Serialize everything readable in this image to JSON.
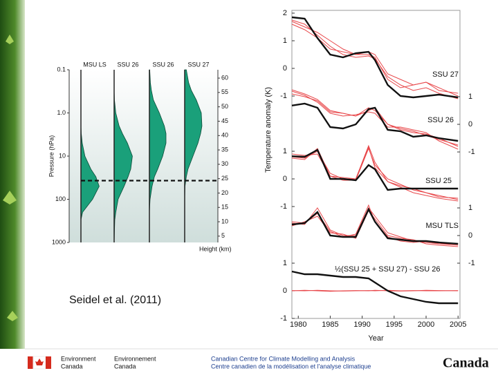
{
  "slide": {
    "citation": "Seidel et al. (2011)"
  },
  "footer": {
    "org_en": [
      "Environment",
      "Canada"
    ],
    "org_fr": [
      "Environnement",
      "Canada"
    ],
    "centre_en": "Canadian Centre for Climate Modelling and Analysis",
    "centre_fr": "Centre canadien de la modélisation et l'analyse climatique",
    "wordmark": "Canada"
  },
  "chart_data": [
    {
      "type": "area",
      "columns": [
        "MSU LS",
        "SSU 26",
        "SSU 26",
        "SSU 27"
      ],
      "ylabel": "Pressure (hPa)",
      "y2label": "Height (km)",
      "log_y": true,
      "ylim": [
        1000,
        0.1
      ],
      "yticks": [
        0.1,
        {
          "value": 1,
          "label": "1.0"
        },
        10,
        100,
        1000
      ],
      "y2lim": [
        2.8,
        62.9
      ],
      "y2ticks": [
        5,
        10,
        15,
        20,
        25,
        30,
        35,
        40,
        45,
        50,
        55,
        60
      ],
      "xlim": [
        0,
        1
      ],
      "dashed_line": 37,
      "color": "#1aa07a",
      "y": [
        1000,
        300,
        200,
        100,
        50,
        30,
        20,
        10,
        5,
        3,
        2,
        1,
        0.5,
        0.3,
        0.2,
        0.1
      ],
      "series": [
        {
          "values": [
            0,
            0,
            0.05,
            0.35,
            0.55,
            0.45,
            0.3,
            0.12,
            0.04,
            0.01,
            0,
            0,
            0,
            0,
            0,
            0
          ]
        },
        {
          "values": [
            0,
            0.02,
            0.05,
            0.12,
            0.3,
            0.42,
            0.5,
            0.55,
            0.4,
            0.25,
            0.15,
            0.05,
            0.01,
            0,
            0,
            0
          ]
        },
        {
          "values": [
            0,
            0,
            0,
            0.02,
            0.08,
            0.15,
            0.25,
            0.4,
            0.5,
            0.5,
            0.45,
            0.3,
            0.12,
            0.06,
            0.03,
            0.01
          ]
        },
        {
          "values": [
            0,
            0,
            0,
            0,
            0.01,
            0.05,
            0.1,
            0.25,
            0.4,
            0.48,
            0.52,
            0.5,
            0.35,
            0.2,
            0.12,
            0.05
          ]
        }
      ]
    },
    {
      "type": "line",
      "ylabel": "Temperature anomaly (K)",
      "xlabel": "Year",
      "x": [
        1979,
        1981,
        1983,
        1985,
        1987,
        1989,
        1991,
        1992,
        1994,
        1996,
        1998,
        2000,
        2002,
        2005
      ],
      "xlim": [
        1979,
        2005.3
      ],
      "xticks": [
        1980,
        1985,
        1990,
        1995,
        2000,
        2005
      ],
      "panels": [
        {
          "label": "SSU 27",
          "axis_side": "left",
          "ylim": [
            -1.3,
            2.1
          ],
          "yticks": [
            -1,
            0,
            1,
            2
          ],
          "series": [
            {
              "color": "#e8474a",
              "values": [
                1.75,
                1.6,
                1.2,
                0.8,
                0.5,
                0.4,
                0.45,
                0.35,
                -0.3,
                -0.6,
                -0.8,
                -0.7,
                -0.9,
                -1.1
              ]
            },
            {
              "color": "#e8474a",
              "values": [
                1.6,
                1.4,
                1.1,
                0.7,
                0.6,
                0.5,
                0.6,
                0.5,
                -0.2,
                -0.4,
                -0.6,
                -0.5,
                -0.7,
                -1.0
              ]
            },
            {
              "color": "#e8474a",
              "values": [
                1.7,
                1.5,
                1.3,
                1.0,
                0.7,
                0.5,
                0.5,
                0.4,
                -0.4,
                -0.7,
                -0.6,
                -0.5,
                -0.8,
                -0.9
              ]
            },
            {
              "color": "#111111",
              "values": [
                1.85,
                1.8,
                1.1,
                0.5,
                0.4,
                0.55,
                0.6,
                0.3,
                -0.6,
                -1.0,
                -1.05,
                -1.0,
                -0.95,
                -1.05
              ]
            }
          ]
        },
        {
          "label": "SSU 26",
          "axis_side": "right",
          "ylim": [
            -1.1,
            1.3
          ],
          "yticks": [
            -1,
            0,
            1
          ],
          "series": [
            {
              "color": "#e8474a",
              "values": [
                1.25,
                1.1,
                0.9,
                0.5,
                0.4,
                0.3,
                0.5,
                0.6,
                0.0,
                -0.2,
                -0.3,
                -0.35,
                -0.5,
                -0.8
              ]
            },
            {
              "color": "#e8474a",
              "values": [
                1.2,
                1.05,
                0.8,
                0.4,
                0.3,
                0.35,
                0.45,
                0.4,
                -0.1,
                -0.1,
                -0.2,
                -0.3,
                -0.6,
                -0.9
              ]
            },
            {
              "color": "#e8474a",
              "values": [
                1.1,
                1.0,
                0.85,
                0.45,
                0.4,
                0.3,
                0.6,
                0.5,
                0.0,
                -0.15,
                -0.25,
                -0.4,
                -0.55,
                -0.75
              ]
            },
            {
              "color": "#111111",
              "values": [
                0.68,
                0.75,
                0.6,
                -0.1,
                -0.15,
                0.0,
                0.55,
                0.6,
                -0.2,
                -0.25,
                -0.45,
                -0.4,
                -0.5,
                -0.6
              ]
            }
          ]
        },
        {
          "label": "SSU 25",
          "axis_side": "left",
          "ylim": [
            -1.1,
            1.3
          ],
          "yticks": [
            -1,
            0,
            1
          ],
          "series": [
            {
              "color": "#e8474a",
              "values": [
                0.8,
                0.75,
                1.0,
                0.2,
                0.0,
                0.0,
                1.2,
                0.6,
                -0.1,
                -0.3,
                -0.5,
                -0.6,
                -0.7,
                -0.8
              ]
            },
            {
              "color": "#e8474a",
              "values": [
                0.9,
                0.85,
                0.9,
                0.1,
                -0.05,
                -0.05,
                1.1,
                0.5,
                0.0,
                -0.2,
                -0.4,
                -0.5,
                -0.6,
                -0.75
              ]
            },
            {
              "color": "#e8474a",
              "values": [
                0.75,
                0.7,
                1.1,
                0.1,
                0.05,
                0.0,
                1.15,
                0.4,
                -0.1,
                -0.25,
                -0.35,
                -0.5,
                -0.65,
                -0.7
              ]
            },
            {
              "color": "#111111",
              "values": [
                0.82,
                0.8,
                1.05,
                0.0,
                0.0,
                -0.05,
                0.5,
                0.35,
                -0.4,
                -0.35,
                -0.35,
                -0.35,
                -0.35,
                -0.35
              ]
            }
          ]
        },
        {
          "label": "MSU TLS",
          "axis_side": "right",
          "ylim": [
            -0.8,
            1.2
          ],
          "yticks": [
            -1,
            0,
            1
          ],
          "series": [
            {
              "color": "#e8474a",
              "values": [
                0.45,
                0.4,
                1.0,
                0.2,
                0.0,
                0.0,
                1.0,
                0.7,
                0.1,
                -0.05,
                -0.2,
                -0.25,
                -0.3,
                -0.35
              ]
            },
            {
              "color": "#e8474a",
              "values": [
                0.35,
                0.5,
                0.7,
                0.1,
                0.05,
                -0.1,
                0.9,
                0.6,
                0.0,
                -0.1,
                -0.15,
                -0.3,
                -0.35,
                -0.4
              ]
            },
            {
              "color": "#e8474a",
              "values": [
                0.5,
                0.45,
                0.8,
                0.15,
                -0.05,
                0.05,
                1.1,
                0.5,
                -0.05,
                -0.2,
                -0.25,
                -0.2,
                -0.3,
                -0.3
              ]
            },
            {
              "color": "#111111",
              "values": [
                0.4,
                0.45,
                0.85,
                0.0,
                -0.05,
                -0.05,
                0.95,
                0.5,
                -0.1,
                -0.15,
                -0.2,
                -0.2,
                -0.25,
                -0.3
              ]
            }
          ]
        },
        {
          "label": "½(SSU 25 + SSU 27) - SSU 26",
          "axis_side": "left",
          "ylim": [
            -1,
            1
          ],
          "yticks": [
            -1,
            0,
            1
          ],
          "series": [
            {
              "color": "#e8474a",
              "values": [
                0.0,
                0.02,
                0.0,
                -0.02,
                0.0,
                0.01,
                0.0,
                0.02,
                0.0,
                -0.01,
                0.0,
                0.02,
                0.01,
                0.0
              ]
            },
            {
              "color": "#e8474a",
              "values": [
                0.01,
                0.0,
                0.02,
                0.0,
                -0.01,
                0.0,
                0.01,
                0.0,
                0.02,
                0.0,
                0.01,
                0.0,
                0.0,
                0.01
              ]
            },
            {
              "color": "#111111",
              "values": [
                0.7,
                0.6,
                0.6,
                0.55,
                0.5,
                0.5,
                0.45,
                0.3,
                0.0,
                -0.2,
                -0.3,
                -0.4,
                -0.45,
                -0.45
              ]
            }
          ]
        }
      ]
    }
  ]
}
